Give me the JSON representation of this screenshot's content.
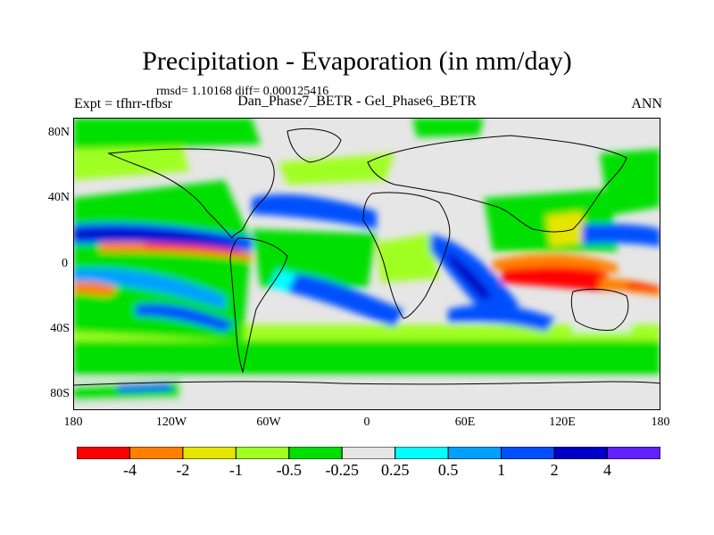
{
  "title": "Precipitation - Evaporation (in mm/day)",
  "stats_line": "rmsd= 1.10168 diff= 0.000125416",
  "left_label": "Expt = tfhrr-tfbsr",
  "center_label": "Dan_Phase7_BETR - Gel_Phase6_BETR",
  "right_label": "ANN",
  "lat_ticks": [
    "80N",
    "40N",
    "0",
    "40S",
    "80S"
  ],
  "lon_ticks": [
    "180",
    "120W",
    "60W",
    "0",
    "60E",
    "120E",
    "180"
  ],
  "colorbar": {
    "colors": [
      "#ff0000",
      "#ff8000",
      "#e5e500",
      "#a0ff20",
      "#00e000",
      "#e6e6e6",
      "#00ffff",
      "#00a0ff",
      "#0050ff",
      "#0000c8",
      "#6020ff"
    ],
    "labels": [
      "-4",
      "-2",
      "-1",
      "-0.5",
      "-0.25",
      "0.25",
      "0.5",
      "1",
      "2",
      "4"
    ]
  }
}
